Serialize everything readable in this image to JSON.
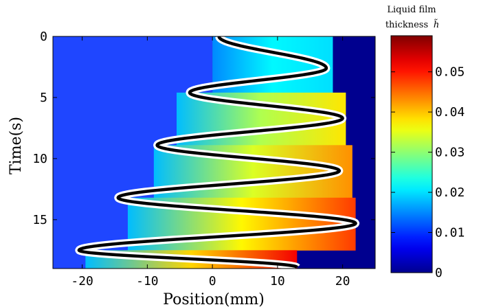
{
  "chart_data": {
    "type": "heatmap",
    "xlabel": "Position(mm)",
    "ylabel": "Time(s)",
    "xlim": [
      -24.5,
      25
    ],
    "ylim": [
      0,
      19
    ],
    "y_reversed": true,
    "x_ticks": [
      "-20",
      "-10",
      "0",
      "10",
      "20"
    ],
    "x_tick_values": [
      -20,
      -10,
      0,
      10,
      20
    ],
    "y_ticks": [
      "0",
      "5",
      "10",
      "15"
    ],
    "y_tick_values": [
      0,
      5,
      10,
      15
    ],
    "colorbar": {
      "title_line1": "Liquid film",
      "title_line2": "thickness",
      "title_symbol": "h̃",
      "range": [
        0,
        0.059
      ],
      "ticks": [
        "0",
        "0.01",
        "0.02",
        "0.03",
        "0.04",
        "0.05"
      ],
      "tick_values": [
        0,
        0.01,
        0.02,
        0.03,
        0.04,
        0.05
      ]
    },
    "background_left_color": "#1f46ff",
    "background_right_color": "#00008f",
    "oscillation_turning_points": [
      {
        "t": 0.0,
        "x": 1.0
      },
      {
        "t": 2.6,
        "x": 17.5
      },
      {
        "t": 4.6,
        "x": -3.5
      },
      {
        "t": 6.7,
        "x": 20.0
      },
      {
        "t": 8.9,
        "x": -8.5
      },
      {
        "t": 11.0,
        "x": 19.5
      },
      {
        "t": 13.2,
        "x": -14.5
      },
      {
        "t": 15.3,
        "x": 22.0
      },
      {
        "t": 17.5,
        "x": -20.5
      },
      {
        "t": 18.9,
        "x": 13.0
      }
    ],
    "film_segments": [
      {
        "t0": 0.0,
        "t1": 4.6,
        "x_left": 0.0,
        "x_right": 18.5,
        "grad_left": 0.015,
        "grad_right": 0.02
      },
      {
        "t0": 4.6,
        "t1": 8.9,
        "x_left": -5.5,
        "x_right": 20.5,
        "grad_left": 0.018,
        "grad_right": 0.038
      },
      {
        "t0": 8.9,
        "t1": 13.2,
        "x_left": -9.0,
        "x_right": 21.5,
        "grad_left": 0.018,
        "grad_right": 0.043
      },
      {
        "t0": 13.2,
        "t1": 17.5,
        "x_left": -13.0,
        "x_right": 22.0,
        "grad_left": 0.018,
        "grad_right": 0.048
      },
      {
        "t0": 17.5,
        "t1": 19.0,
        "x_left": -19.5,
        "x_right": 13.0,
        "grad_left": 0.018,
        "grad_right": 0.052
      }
    ]
  }
}
